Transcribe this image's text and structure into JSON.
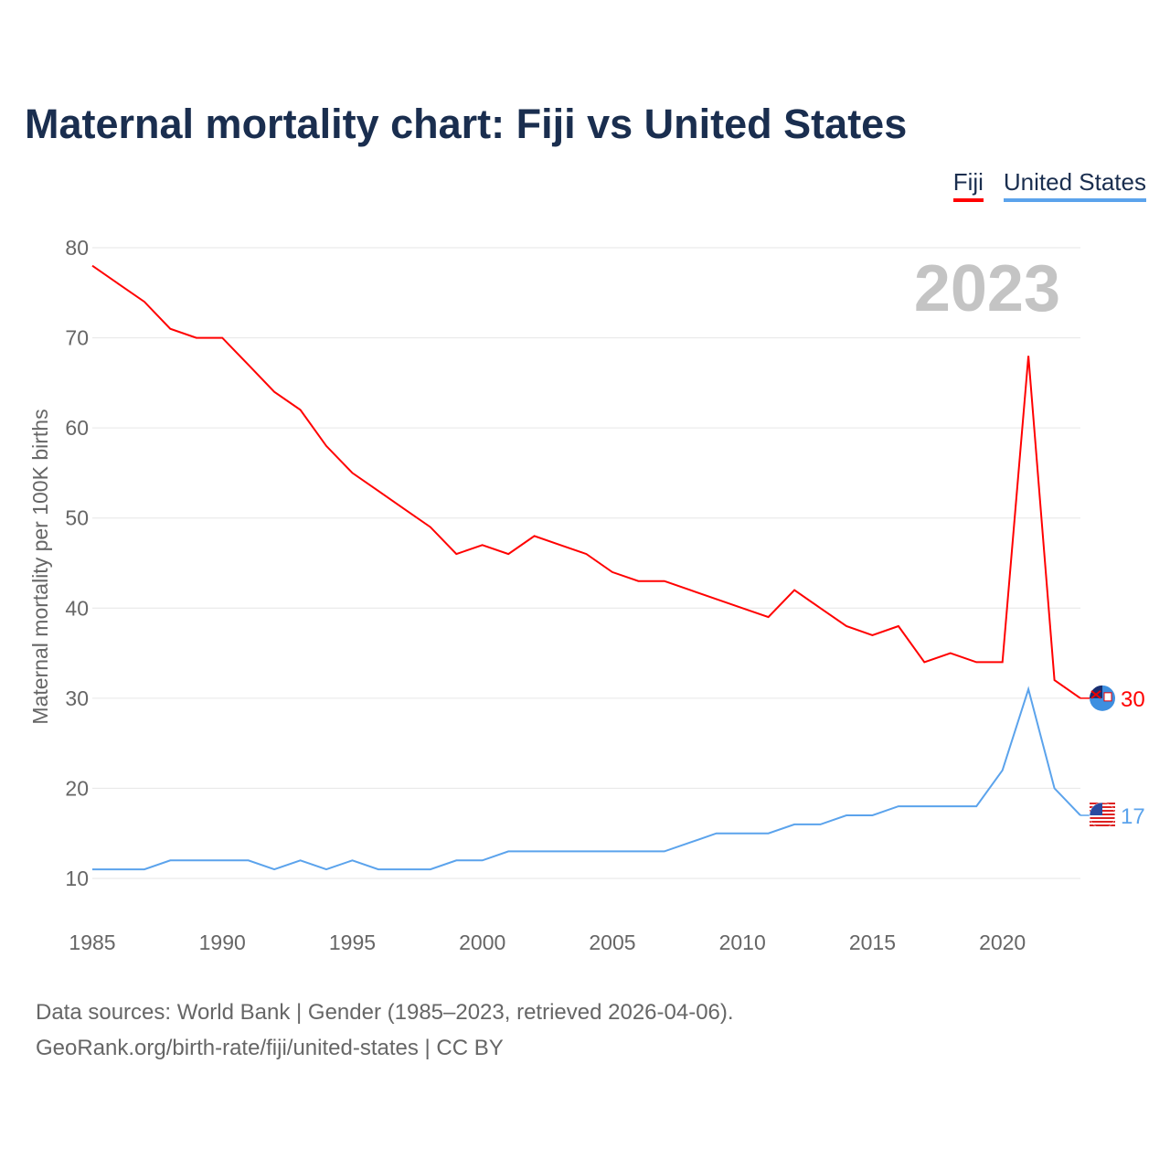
{
  "title": "Maternal mortality chart: Fiji vs United States",
  "legend": [
    {
      "name": "Fiji",
      "color": "#ff0000"
    },
    {
      "name": "United States",
      "color": "#5ba3ec"
    }
  ],
  "source_lines": [
    "Data sources: World Bank | Gender (1985–2023, retrieved 2026-04-06).",
    "GeoRank.org/birth-rate/fiji/united-states | CC BY"
  ],
  "chart_data": {
    "type": "line",
    "title": "Maternal mortality chart: Fiji vs United States",
    "xlabel": "",
    "ylabel": "Maternal mortality per 100K births",
    "year_label": "2023",
    "xlim": [
      1985,
      2023
    ],
    "ylim": [
      10,
      80
    ],
    "xticks": [
      "1985",
      "1990",
      "1995",
      "2000",
      "2005",
      "2010",
      "2015",
      "2020"
    ],
    "yticks": [
      "10",
      "20",
      "30",
      "40",
      "50",
      "60",
      "70",
      "80"
    ],
    "grid": true,
    "legend_position": "top-right",
    "x": [
      1985,
      1986,
      1987,
      1988,
      1989,
      1990,
      1991,
      1992,
      1993,
      1994,
      1995,
      1996,
      1997,
      1998,
      1999,
      2000,
      2001,
      2002,
      2003,
      2004,
      2005,
      2006,
      2007,
      2008,
      2009,
      2010,
      2011,
      2012,
      2013,
      2014,
      2015,
      2016,
      2017,
      2018,
      2019,
      2020,
      2021,
      2022,
      2023
    ],
    "series": [
      {
        "name": "Fiji",
        "color": "#ff0000",
        "end_label": "30",
        "values": [
          78,
          76,
          74,
          71,
          70,
          70,
          67,
          64,
          62,
          58,
          55,
          53,
          51,
          49,
          46,
          47,
          46,
          48,
          47,
          46,
          44,
          43,
          43,
          42,
          41,
          40,
          39,
          42,
          40,
          38,
          37,
          38,
          34,
          35,
          34,
          34,
          68,
          32,
          30
        ]
      },
      {
        "name": "United States",
        "color": "#5ba3ec",
        "end_label": "17",
        "values": [
          11,
          11,
          11,
          12,
          12,
          12,
          12,
          11,
          12,
          11,
          12,
          11,
          11,
          11,
          12,
          12,
          13,
          13,
          13,
          13,
          13,
          13,
          13,
          14,
          15,
          15,
          15,
          16,
          16,
          17,
          17,
          18,
          18,
          18,
          18,
          22,
          31,
          20,
          17
        ]
      }
    ]
  }
}
